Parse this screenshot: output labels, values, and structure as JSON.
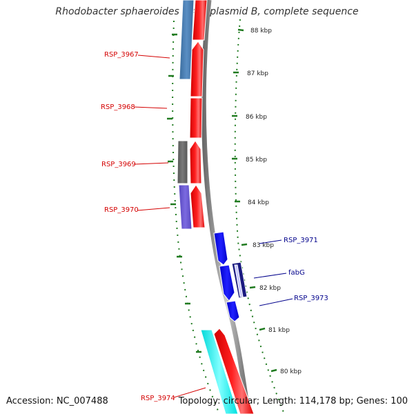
{
  "title": "Rhodobacter sphaeroides 2.4.1 plasmid B, complete sequence",
  "footer": {
    "accession": "Accession: NC_007488",
    "topology": "Topology: circular",
    "length": "Length: 114,178 bp",
    "genes": "Genes: 100"
  },
  "colors": {
    "red_gene": "#ff0000",
    "steelblue_gene": "#4a7fb6",
    "gray_gene": "#6e6e6e",
    "slate_gene": "#6a5acd",
    "blue_gene": "#0000ee",
    "cyan_gene": "#00f5f5",
    "backbone": "#8a8a8a",
    "tick_green": "#1f7a1f",
    "label_red": "#d40000",
    "label_blue": "#00008b"
  },
  "kbp_labels": [
    "88 kbp",
    "87 kbp",
    "86 kbp",
    "85 kbp",
    "84 kbp",
    "83 kbp",
    "82 kbp",
    "81 kbp",
    "80 kbp"
  ],
  "genes": [
    {
      "id": "RSP_3967",
      "side": "left"
    },
    {
      "id": "RSP_3968",
      "side": "left"
    },
    {
      "id": "RSP_3969",
      "side": "left"
    },
    {
      "id": "RSP_3970",
      "side": "left"
    },
    {
      "id": "RSP_3971",
      "side": "right"
    },
    {
      "id": "fabG",
      "side": "right"
    },
    {
      "id": "RSP_3973",
      "side": "right"
    },
    {
      "id": "RSP_3974",
      "side": "left"
    }
  ]
}
